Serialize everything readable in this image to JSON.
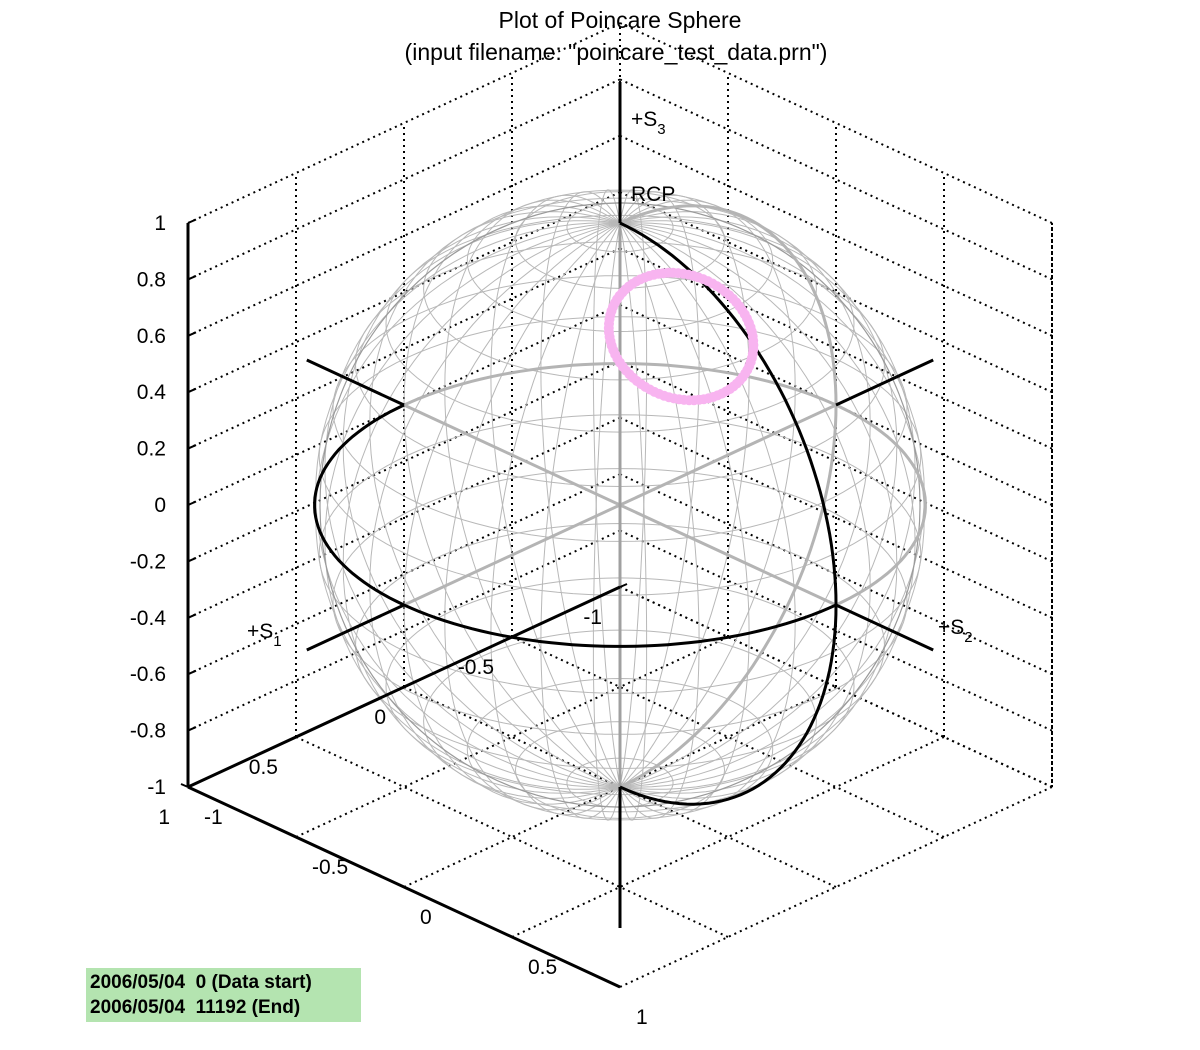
{
  "chart_data": {
    "type": "scatter",
    "title": "Plot of Poincare Sphere",
    "subtitle": "(input filename: \"poincare_test_data.prn\")",
    "axes": {
      "s1": {
        "label": "+S",
        "subscript": "1",
        "range": [
          -1,
          1
        ],
        "ticks": [
          "-1",
          "-0.5",
          "0",
          "0.5",
          "1"
        ]
      },
      "s2": {
        "label": "+S",
        "subscript": "2",
        "range": [
          -1,
          1
        ],
        "ticks": [
          "-1",
          "-0.5",
          "0",
          "0.5",
          "1"
        ]
      },
      "s3": {
        "label": "+S",
        "subscript": "3",
        "range": [
          -1,
          1
        ],
        "ticks": [
          "-1",
          "-0.8",
          "-0.6",
          "-0.4",
          "-0.2",
          "0",
          "0.2",
          "0.4",
          "0.6",
          "0.8",
          "1"
        ]
      }
    },
    "pole_label": "RCP",
    "grid": true,
    "marker_color": "#f8b4f0",
    "series": [
      {
        "center": [
          0.19,
          0.48,
          0.85
        ],
        "angular_radius_deg": 14,
        "point_count": 90
      }
    ]
  },
  "info": {
    "line1": "2006/05/04  0 (Data start)",
    "line2": "2006/05/04  11192 (End)"
  },
  "colors": {
    "info_background": "#b4e4b0",
    "sphere_mesh": "#b8b8b8",
    "great_circle": "#000000",
    "box_grid": "#000000"
  }
}
